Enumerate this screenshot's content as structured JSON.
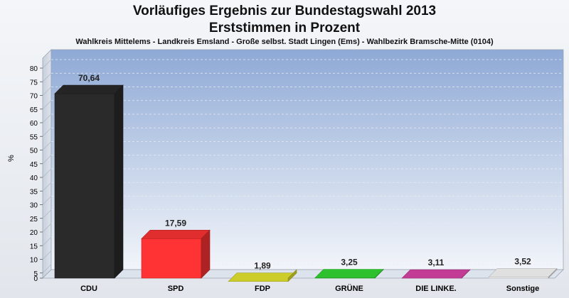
{
  "header": {
    "title_line1": "Vorläufiges Ergebnis zur Bundestagswahl 2013",
    "title_line2": "Erststimmen in Prozent",
    "subtitle": "Wahlkreis Mittelems - Landkreis Emsland - Große selbst. Stadt Lingen (Ems) - Wahlbezirk Bramsche-Mitte (0104)"
  },
  "chart_data": {
    "type": "bar",
    "title": "Vorläufiges Ergebnis zur Bundestagswahl 2013 – Erststimmen in Prozent",
    "subtitle": "Wahlkreis Mittelems - Landkreis Emsland - Große selbst. Stadt Lingen (Ems) - Wahlbezirk Bramsche-Mitte (0104)",
    "categories": [
      "CDU",
      "SPD",
      "FDP",
      "GRÜNE",
      "DIE LINKE.",
      "Sonstige"
    ],
    "values": [
      70.64,
      17.59,
      1.89,
      3.25,
      3.11,
      3.52
    ],
    "value_labels": [
      "70,64",
      "17,59",
      "1,89",
      "3,25",
      "3,11",
      "3,52"
    ],
    "colors": [
      "#2a2a2a",
      "#ff3333",
      "#e8e830",
      "#33dd33",
      "#dd44aa",
      "#ffffff"
    ],
    "xlabel": "",
    "ylabel": "%",
    "ylim": [
      0,
      80
    ],
    "yticks": [
      0,
      5,
      10,
      15,
      20,
      25,
      30,
      35,
      40,
      45,
      50,
      55,
      60,
      65,
      70,
      75,
      80
    ],
    "grid": true,
    "legend": "none"
  }
}
